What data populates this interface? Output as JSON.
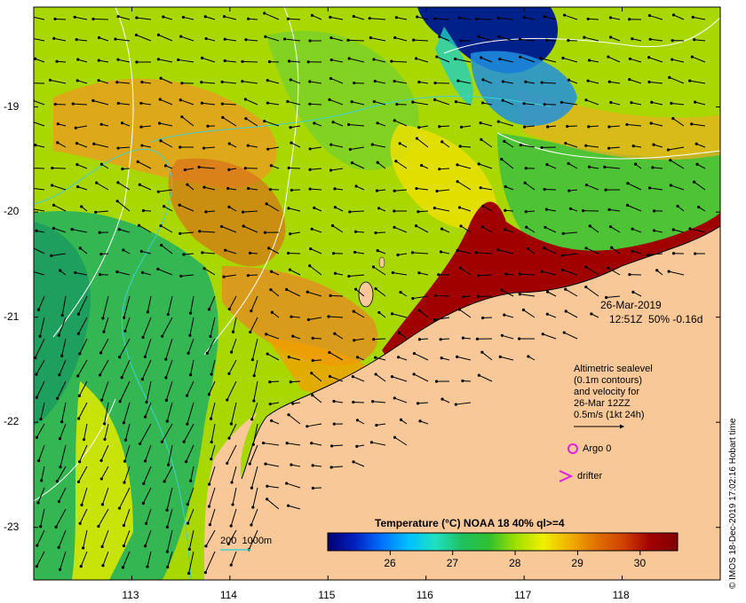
{
  "map": {
    "date": "26-Mar-2019",
    "time_info": "12:51Z  50% -0.16d",
    "longitude_ticks": [
      "113",
      "114",
      "115",
      "116",
      "117",
      "118"
    ],
    "latitude_ticks": [
      "-19",
      "-20",
      "-21",
      "-22",
      "-23"
    ],
    "lon_range": [
      112.0,
      119.0
    ],
    "lat_range": [
      -23.5,
      -18.05
    ]
  },
  "altimetry_legend": {
    "lines": [
      "Altimetric sealevel",
      "(0.1m contours)",
      "and velocity for",
      "26-Mar 12ZZ",
      "0.5m/s (1kt 24h)"
    ]
  },
  "markers": {
    "argo_label": "Argo 0",
    "drifter_label": "drifter",
    "marker_color": "#e020e0"
  },
  "bathymetry_legend": {
    "label": "200  1000m",
    "color": "#40d0d0"
  },
  "colorbar": {
    "title": "Temperature (°C) NOAA 18 40% ql>=4",
    "ticks": [
      "26",
      "27",
      "28",
      "29",
      "30"
    ],
    "range": [
      25.0,
      30.6
    ],
    "colors": [
      "#000070",
      "#0020c0",
      "#0070ff",
      "#00c0ff",
      "#20e0c0",
      "#20c060",
      "#30c030",
      "#a0e000",
      "#f0f000",
      "#f0b000",
      "#e07000",
      "#d04000",
      "#a00000",
      "#800000"
    ]
  },
  "credit": "© IMOS 18-Dec-2019 17:02:16 Hobart time",
  "colors": {
    "land": "#f8c898",
    "deep_sst": "#00208a",
    "warm_sst": "#e8a020",
    "hot_sst": "#a00000"
  }
}
